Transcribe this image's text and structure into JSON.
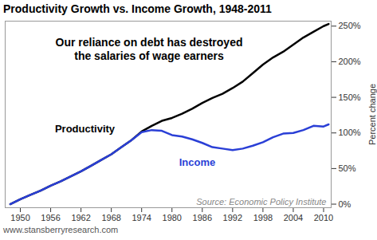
{
  "chart_data": {
    "type": "line",
    "title": "Productivity Growth vs. Income Growth, 1948-2011",
    "annotations": [
      "Our reliance on debt has destroyed\nthe salaries of wage earners"
    ],
    "source": "Source: Economic Policy Institute",
    "caption": "www.stansberryresearch.com",
    "ylabel": "Percent change",
    "x": [
      1948,
      1950,
      1952,
      1954,
      1956,
      1958,
      1960,
      1962,
      1964,
      1966,
      1968,
      1970,
      1972,
      1974,
      1976,
      1978,
      1980,
      1982,
      1984,
      1986,
      1988,
      1990,
      1992,
      1994,
      1996,
      1998,
      2000,
      2002,
      2004,
      2006,
      2008,
      2010,
      2011
    ],
    "series": [
      {
        "name": "Productivity",
        "color": "#000000",
        "values": [
          0,
          7,
          13,
          19,
          26,
          32,
          39,
          46,
          54,
          62,
          70,
          80,
          90,
          102,
          110,
          117,
          121,
          127,
          134,
          142,
          149,
          155,
          163,
          172,
          184,
          196,
          206,
          214,
          224,
          234,
          242,
          250,
          253
        ]
      },
      {
        "name": "Income",
        "color": "#2a3fd6",
        "values": [
          0,
          7,
          13,
          19,
          26,
          32,
          39,
          46,
          54,
          62,
          70,
          80,
          90,
          101,
          104,
          103,
          97,
          95,
          91,
          86,
          80,
          78,
          76,
          78,
          82,
          87,
          94,
          99,
          100,
          104,
          110,
          109,
          112
        ]
      }
    ],
    "xlim": [
      1947,
      2011.5
    ],
    "xticks": [
      1950,
      1956,
      1962,
      1968,
      1974,
      1980,
      1986,
      1992,
      1998,
      2004,
      2010
    ],
    "ylim": [
      -5,
      257
    ],
    "yticks": [
      {
        "value": 0,
        "label": "0%"
      },
      {
        "value": 50,
        "label": "50%"
      },
      {
        "value": 100,
        "label": "100%"
      },
      {
        "value": 150,
        "label": "150%"
      },
      {
        "value": 200,
        "label": "200%"
      },
      {
        "value": 250,
        "label": "250%"
      }
    ],
    "grid": false
  }
}
